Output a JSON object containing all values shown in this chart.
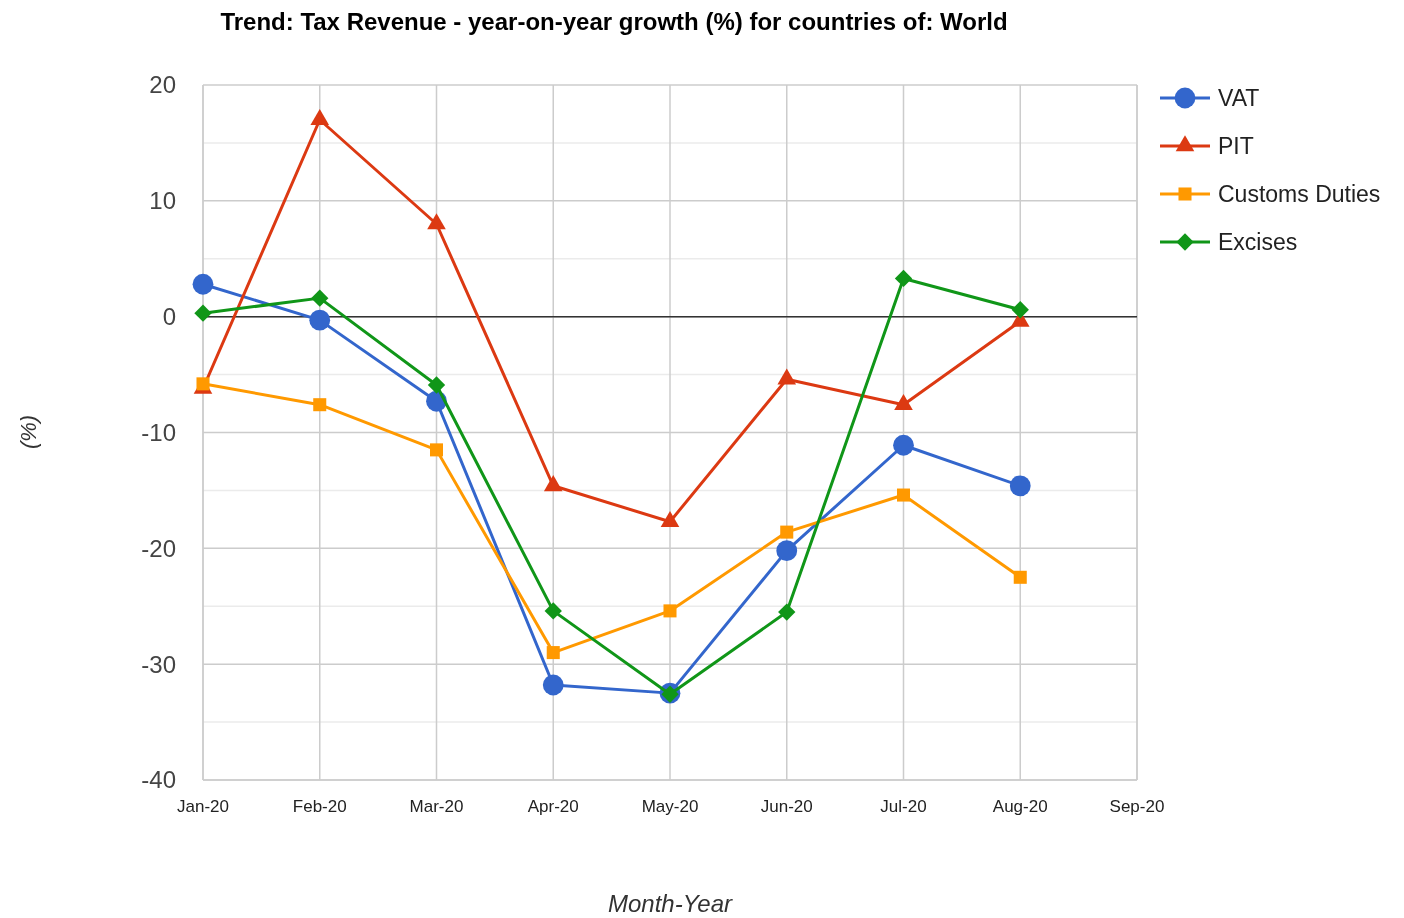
{
  "chart_data": {
    "type": "line",
    "title": "Trend:  Tax Revenue - year-on-year growth (%) for countries of: World",
    "xlabel": "Month-Year",
    "ylabel": "(%)",
    "categories": [
      "Jan-20",
      "Feb-20",
      "Mar-20",
      "Apr-20",
      "May-20",
      "Jun-20",
      "Jul-20",
      "Aug-20",
      "Sep-20"
    ],
    "ylim": [
      -40,
      20
    ],
    "yticks": [
      -40,
      {
        "value": -35,
        "label": null
      },
      -30,
      {
        "value": -25,
        "label": null
      },
      -20,
      {
        "value": -15,
        "label": null
      },
      -10,
      {
        "value": -5,
        "label": null
      },
      0,
      {
        "value": 5,
        "label": null
      },
      10,
      {
        "value": 15,
        "label": null
      },
      20
    ],
    "grid": true,
    "legend": "right",
    "line_style": "solid",
    "ref_lines": [
      {
        "axis": "y",
        "value": 0,
        "label": null,
        "color": "#333333"
      }
    ],
    "series": [
      {
        "name": "VAT",
        "color": "#3366cc",
        "marker": "circle",
        "values": [
          2.8,
          -0.3,
          -7.3,
          -31.8,
          -32.5,
          -20.2,
          -11.1,
          -14.6,
          null
        ]
      },
      {
        "name": "PIT",
        "color": "#dc3912",
        "marker": "triangle",
        "values": [
          -6.2,
          17.0,
          8.0,
          -14.6,
          -17.7,
          -5.4,
          -7.6,
          -0.4,
          null
        ]
      },
      {
        "name": "Customs Duties",
        "color": "#ff9900",
        "marker": "square",
        "values": [
          -5.8,
          -7.6,
          -11.5,
          -29.0,
          -25.4,
          -18.6,
          -15.4,
          -22.5,
          null
        ]
      },
      {
        "name": "Excises",
        "color": "#109618",
        "marker": "diamond",
        "values": [
          0.3,
          1.6,
          -5.9,
          -25.4,
          -32.6,
          -25.5,
          3.3,
          0.6,
          null
        ]
      }
    ]
  }
}
